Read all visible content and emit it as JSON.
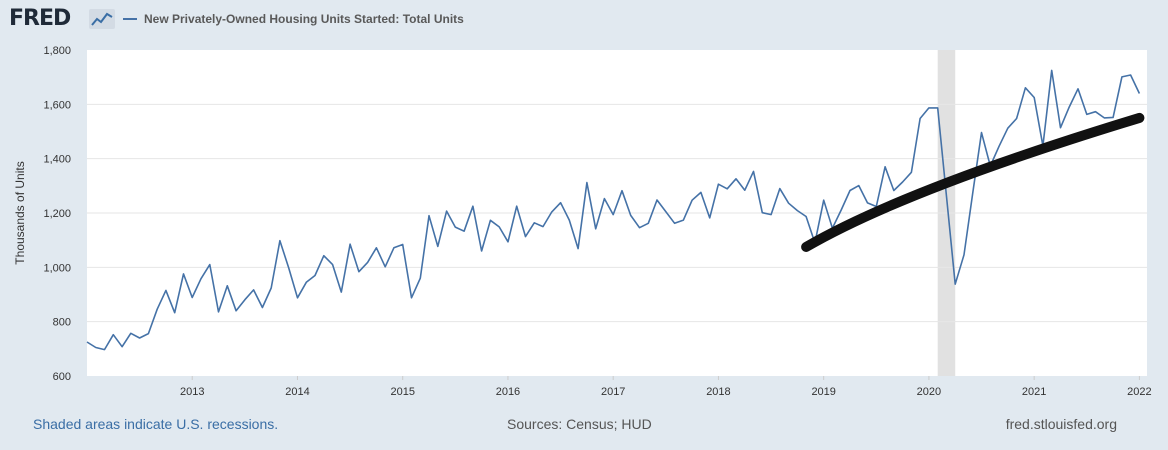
{
  "header": {
    "logo_text": "FRED",
    "legend_label": "New Privately-Owned Housing Units Started: Total Units"
  },
  "footer": {
    "recession_note": "Shaded areas indicate U.S. recessions.",
    "sources": "Sources: Census; HUD",
    "site": "fred.stlouisfed.org"
  },
  "colors": {
    "series": "#4572a7",
    "recession": "#e1e1e1",
    "annotation": "#111111",
    "background": "#e1e9f0"
  },
  "chart_data": {
    "type": "line",
    "title": "",
    "xlabel": "",
    "ylabel": "Thousands of Units",
    "ylim": [
      600,
      1800
    ],
    "yticks": [
      "600",
      "800",
      "1,000",
      "1,200",
      "1,400",
      "1,600",
      "1,800"
    ],
    "xticks": [
      "2013",
      "2014",
      "2015",
      "2016",
      "2017",
      "2018",
      "2019",
      "2020",
      "2021",
      "2022"
    ],
    "grid": "horizontal",
    "legend_position": "top-left",
    "start": "2012-01",
    "recessions": [
      {
        "start": "2020-02",
        "end": "2020-04"
      }
    ],
    "series": [
      {
        "name": "New Privately-Owned Housing Units Started: Total Units",
        "values": [
          725,
          705,
          697,
          752,
          708,
          757,
          740,
          756,
          846,
          915,
          833,
          976,
          889,
          958,
          1010,
          836,
          932,
          840,
          881,
          917,
          852,
          924,
          1098,
          998,
          888,
          945,
          970,
          1043,
          1010,
          909,
          1085,
          984,
          1018,
          1072,
          1002,
          1072,
          1084,
          888,
          960,
          1190,
          1077,
          1207,
          1148,
          1133,
          1225,
          1060,
          1173,
          1149,
          1094,
          1225,
          1113,
          1164,
          1150,
          1204,
          1238,
          1174,
          1069,
          1312,
          1142,
          1253,
          1194,
          1282,
          1191,
          1146,
          1162,
          1248,
          1205,
          1162,
          1174,
          1247,
          1276,
          1182,
          1306,
          1289,
          1326,
          1284,
          1353,
          1201,
          1194,
          1290,
          1236,
          1209,
          1187,
          1090,
          1247,
          1144,
          1211,
          1283,
          1301,
          1237,
          1224,
          1370,
          1283,
          1314,
          1350,
          1548,
          1587,
          1587,
          1261,
          938,
          1046,
          1275,
          1496,
          1373,
          1446,
          1512,
          1548,
          1661,
          1625,
          1447,
          1725,
          1514,
          1590,
          1657,
          1563,
          1573,
          1550,
          1552,
          1701,
          1708,
          1640
        ]
      }
    ],
    "annotations": [
      {
        "type": "trend-stroke",
        "x0": "2018-11",
        "y0": 1075,
        "x1": "2022-01",
        "y1": 1550
      }
    ]
  }
}
